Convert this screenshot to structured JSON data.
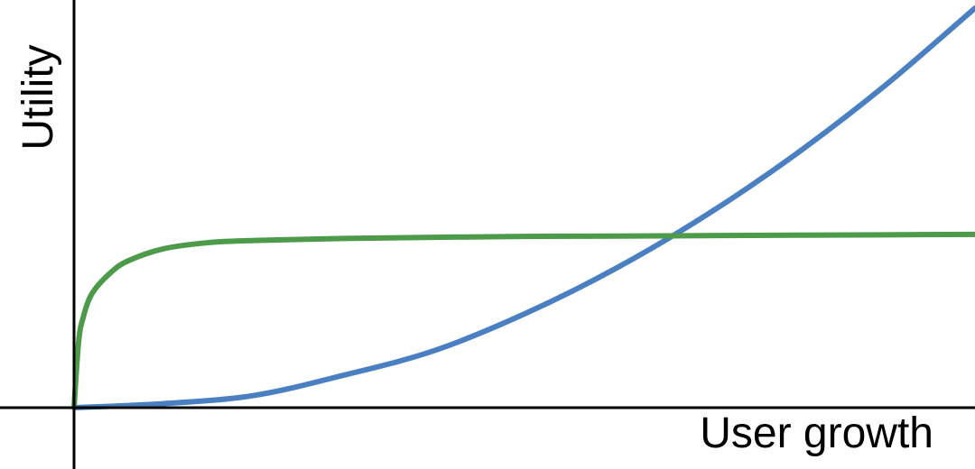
{
  "chart_data": {
    "type": "line",
    "title": "",
    "xlabel": "User growth",
    "ylabel": "Utility",
    "xlim": [
      0,
      1
    ],
    "ylim": [
      0,
      1
    ],
    "grid": false,
    "legend": "none",
    "series": [
      {
        "color": "#4a80c1",
        "x": [
          0,
          0.1,
          0.2,
          0.3,
          0.4,
          0.5,
          0.6,
          0.7,
          0.8,
          0.9,
          1.0
        ],
        "y": [
          0,
          0.01,
          0.03,
          0.08,
          0.14,
          0.23,
          0.34,
          0.47,
          0.62,
          0.79,
          0.98
        ]
      },
      {
        "color": "#4c9a4a",
        "x": [
          0,
          0.005,
          0.01,
          0.02,
          0.04,
          0.06,
          0.1,
          0.15,
          0.2,
          0.3,
          0.4,
          0.5,
          0.6,
          0.7,
          0.8,
          0.9,
          1.0
        ],
        "y": [
          0,
          0.16,
          0.22,
          0.28,
          0.33,
          0.36,
          0.39,
          0.405,
          0.41,
          0.415,
          0.418,
          0.42,
          0.421,
          0.422,
          0.423,
          0.424,
          0.425
        ]
      }
    ]
  }
}
